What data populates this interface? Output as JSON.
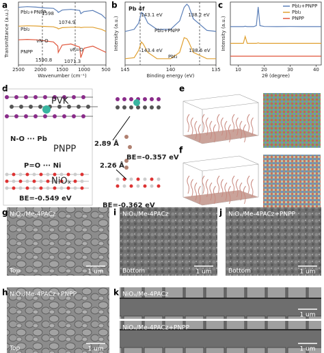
{
  "chart_data": [
    {
      "type": "line",
      "panel": "a",
      "xlabel": "Wavenumber (cm⁻¹)",
      "ylabel": "Transmittance (a.u.)",
      "x": [
        2500,
        2300,
        2100,
        1900,
        1700,
        1600,
        1590,
        1500,
        1300,
        1100,
        1075,
        1000,
        800,
        600,
        500
      ],
      "xlim": [
        2500,
        500
      ],
      "xticks": [
        2500,
        2000,
        1500,
        1000,
        500
      ],
      "ylim": [
        0,
        3
      ],
      "series": [
        {
          "name": "PbI₂+PNPP",
          "color": "#5b7fb8",
          "values": [
            2.75,
            2.78,
            2.76,
            2.72,
            2.7,
            2.55,
            2.5,
            2.62,
            2.65,
            2.6,
            2.45,
            2.55,
            2.6,
            2.4,
            2.2
          ]
        },
        {
          "name": "PbI₂",
          "color": "#e0a030",
          "values": [
            1.85,
            1.87,
            1.86,
            1.84,
            1.82,
            1.75,
            1.72,
            1.78,
            1.8,
            1.8,
            1.78,
            1.8,
            1.8,
            1.7,
            1.6
          ]
        },
        {
          "name": "PNPP",
          "color": "#e0553a",
          "values": [
            1.2,
            1.22,
            1.2,
            1.15,
            1.1,
            0.9,
            0.6,
            0.95,
            1.0,
            0.85,
            0.35,
            0.8,
            0.9,
            0.7,
            0.6
          ]
        }
      ],
      "annotations": [
        "1598",
        "1074.9",
        "νN-O",
        "νP=O",
        "1590.8",
        "1071.3"
      ]
    },
    {
      "type": "line",
      "panel": "b",
      "title": "Pb 4f",
      "xlabel": "Binding energy (eV)",
      "ylabel": "Intensity (a.u.)",
      "x": [
        145,
        144,
        143.5,
        143.2,
        143,
        142.5,
        141.5,
        140,
        139,
        138.5,
        138.2,
        138,
        137.5,
        136,
        135
      ],
      "xlim": [
        145,
        135
      ],
      "xticks": [
        145,
        140,
        135
      ],
      "ylim": [
        0,
        3
      ],
      "series": [
        {
          "name": "PbI₂+PNPP",
          "color": "#5b7fb8",
          "values": [
            1.6,
            1.7,
            2.0,
            2.5,
            2.45,
            2.0,
            1.7,
            1.7,
            2.1,
            2.75,
            2.9,
            2.8,
            2.2,
            1.65,
            1.6
          ]
        },
        {
          "name": "PbI₂",
          "color": "#e0a030",
          "values": [
            0.3,
            0.35,
            0.7,
            1.1,
            1.0,
            0.6,
            0.3,
            0.3,
            0.6,
            1.3,
            1.25,
            1.1,
            0.6,
            0.3,
            0.3
          ]
        }
      ],
      "annotations": [
        "143.1 eV",
        "138.2 eV",
        "143.4 eV",
        "138.6 eV"
      ]
    },
    {
      "type": "line",
      "panel": "c",
      "xlabel": "2θ (degree)",
      "ylabel": "Intensity (a.u.)",
      "legend": "top-right",
      "x": [
        7,
        10,
        12,
        12.7,
        13.5,
        16,
        17,
        17.7,
        18.4,
        20,
        25,
        30,
        35,
        40,
        42
      ],
      "xlim": [
        7,
        42
      ],
      "xticks": [
        10,
        20,
        30,
        40
      ],
      "ylim": [
        0,
        3.2
      ],
      "series": [
        {
          "name": "PbI₂+PNPP",
          "color": "#5b7fb8",
          "values": [
            1.95,
            1.95,
            1.95,
            1.97,
            1.95,
            1.95,
            2.0,
            2.95,
            2.0,
            1.96,
            1.95,
            1.96,
            1.95,
            1.95,
            1.95
          ]
        },
        {
          "name": "PbI₂",
          "color": "#e0a030",
          "values": [
            1.1,
            1.1,
            1.1,
            1.45,
            1.1,
            1.1,
            1.1,
            1.12,
            1.1,
            1.1,
            1.1,
            1.1,
            1.1,
            1.1,
            1.1
          ]
        },
        {
          "name": "PNPP",
          "color": "#e0553a",
          "values": [
            0.45,
            0.45,
            0.45,
            0.45,
            0.45,
            0.45,
            0.45,
            0.45,
            0.45,
            0.45,
            0.45,
            0.45,
            0.45,
            0.45,
            0.45
          ]
        }
      ],
      "annotations": []
    }
  ],
  "panel_d": {
    "panel": "d",
    "texts": [
      "PVK",
      "N-O ··· Pb",
      "PNPP",
      "P=O ··· Ni",
      "NiOₓ",
      "BE=-0.549 eV",
      "2.89 Å",
      "BE=-0.357 eV",
      "2.26 Å",
      "BE=-0.362 eV"
    ]
  },
  "panel_e": {
    "panel": "e"
  },
  "panel_f": {
    "panel": "f"
  },
  "sem": [
    {
      "panel": "g",
      "label": "NiOₓ/Me-4PACz",
      "view": "Top",
      "scale": "1 um"
    },
    {
      "panel": "i",
      "label": "NiOₓ/Me-4PACz",
      "view": "Bottom",
      "scale": "1 um"
    },
    {
      "panel": "j",
      "label": "NiOₓ/Me-4PACz+PNPP",
      "view": "Bottom",
      "scale": "1 um"
    },
    {
      "panel": "h",
      "label": "NiOₓ/Me-4PACz+PNPP",
      "view": "Top",
      "scale": "1 um"
    },
    {
      "panel": "k",
      "label": "NiOₓ/Me-4PACz",
      "scale": "1 um"
    },
    {
      "label": "NiOₓ/Me-4PACz+PNPP",
      "scale": "1 um"
    }
  ]
}
